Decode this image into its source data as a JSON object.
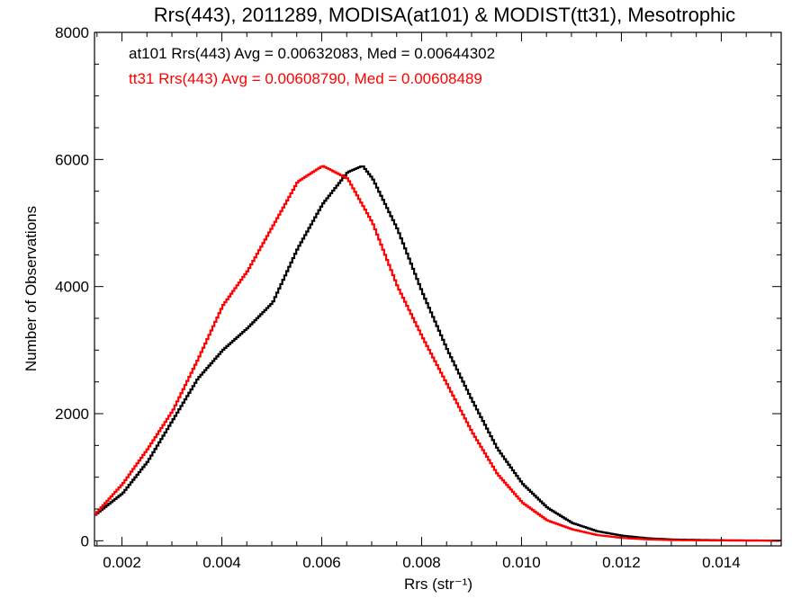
{
  "chart_data": {
    "type": "line",
    "title": "Rrs(443), 2011289, MODISA(at101) & MODIST(tt31), Mesotrophic",
    "xlabel": "Rrs (str⁻¹)",
    "ylabel": "Number of Observations",
    "xlim": [
      0.00145,
      0.0152
    ],
    "ylim": [
      -80,
      8000
    ],
    "xticks": [
      0.002,
      0.004,
      0.006,
      0.008,
      0.01,
      0.012,
      0.014
    ],
    "xtick_labels": [
      "0.002",
      "0.004",
      "0.006",
      "0.008",
      "0.010",
      "0.012",
      "0.014"
    ],
    "yticks": [
      0,
      2000,
      4000,
      6000,
      8000
    ],
    "ytick_labels": [
      "0",
      "2000",
      "4000",
      "6000",
      "8000"
    ],
    "grid": false,
    "series": [
      {
        "name": "at101",
        "color": "#000000",
        "x": [
          0.00145,
          0.002,
          0.0025,
          0.003,
          0.0035,
          0.004,
          0.0045,
          0.005,
          0.0055,
          0.006,
          0.0065,
          0.0068,
          0.007,
          0.0075,
          0.008,
          0.0085,
          0.009,
          0.0095,
          0.01,
          0.0105,
          0.011,
          0.0115,
          0.012,
          0.0125,
          0.013,
          0.014,
          0.015,
          0.0152
        ],
        "values": [
          410,
          750,
          1250,
          1900,
          2550,
          3000,
          3350,
          3750,
          4600,
          5300,
          5800,
          5900,
          5700,
          4900,
          3900,
          3000,
          2200,
          1450,
          900,
          520,
          280,
          150,
          80,
          40,
          20,
          8,
          3,
          2
        ]
      },
      {
        "name": "tt31",
        "color": "#ff0000",
        "x": [
          0.00145,
          0.002,
          0.0025,
          0.003,
          0.0035,
          0.004,
          0.0045,
          0.005,
          0.0055,
          0.006,
          0.0065,
          0.007,
          0.0075,
          0.008,
          0.0085,
          0.009,
          0.0095,
          0.01,
          0.0105,
          0.011,
          0.0115,
          0.012,
          0.0125,
          0.013,
          0.014,
          0.015,
          0.0152
        ],
        "values": [
          420,
          900,
          1450,
          2050,
          2850,
          3700,
          4250,
          4950,
          5650,
          5900,
          5700,
          5000,
          4000,
          3200,
          2450,
          1700,
          1050,
          600,
          320,
          180,
          90,
          45,
          22,
          10,
          4,
          2,
          1
        ]
      }
    ],
    "annotations": [
      {
        "text": "at101 Rrs(443) Avg = 0.00632083, Med = 0.00644302",
        "color": "#000000"
      },
      {
        "text": "tt31 Rrs(443) Avg = 0.00608790, Med = 0.00608489",
        "color": "#ff0000"
      }
    ]
  }
}
